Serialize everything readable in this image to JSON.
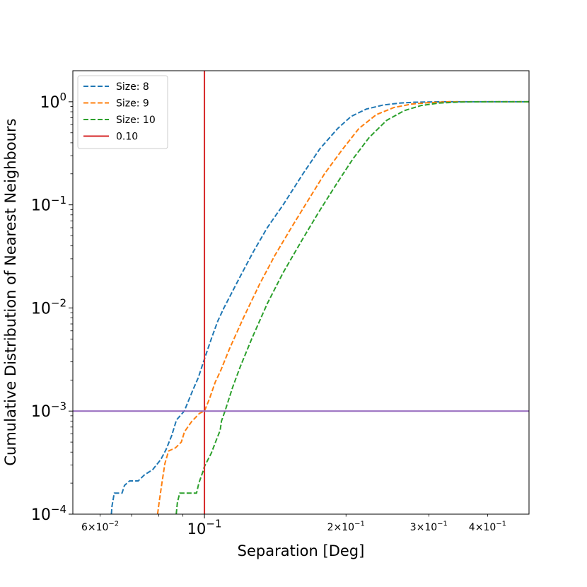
{
  "chart_data": {
    "type": "line",
    "xscale": "log",
    "yscale": "log",
    "xlabel": "Separation [Deg]",
    "ylabel": "Cumulative Distribution of Nearest Neighbours",
    "xlim": [
      0.0525,
      0.49
    ],
    "ylim": [
      0.0001,
      2.0
    ],
    "x_major_ticks": [
      {
        "value": 0.1,
        "mantissa": "",
        "base": "10",
        "exp": "−1"
      }
    ],
    "x_minor_ticks": [
      {
        "value": 0.06,
        "mantissa": "6×",
        "base": "10",
        "exp": "−2"
      },
      {
        "value": 0.2,
        "mantissa": "2×",
        "base": "10",
        "exp": "−1"
      },
      {
        "value": 0.3,
        "mantissa": "3×",
        "base": "10",
        "exp": "−1"
      },
      {
        "value": 0.4,
        "mantissa": "4×",
        "base": "10",
        "exp": "−1"
      }
    ],
    "y_major_ticks": [
      {
        "value": 0.0001,
        "base": "10",
        "exp": "−4"
      },
      {
        "value": 0.001,
        "base": "10",
        "exp": "−3"
      },
      {
        "value": 0.01,
        "base": "10",
        "exp": "−2"
      },
      {
        "value": 0.1,
        "base": "10",
        "exp": "−1"
      },
      {
        "value": 1.0,
        "base": "10",
        "exp": "0"
      }
    ],
    "series": [
      {
        "name": "Size: 8",
        "style": "dashed",
        "color": "#1f77b4",
        "points": [
          [
            0.0634,
            0.0001
          ],
          [
            0.0636,
            0.00012
          ],
          [
            0.0643,
            0.00016
          ],
          [
            0.0668,
            0.00016
          ],
          [
            0.0676,
            0.00019
          ],
          [
            0.0693,
            0.00021
          ],
          [
            0.0723,
            0.00021
          ],
          [
            0.0745,
            0.00024
          ],
          [
            0.0776,
            0.00027
          ],
          [
            0.0808,
            0.00034
          ],
          [
            0.0828,
            0.00042
          ],
          [
            0.0852,
            0.00058
          ],
          [
            0.0872,
            0.00082
          ],
          [
            0.0906,
            0.001
          ],
          [
            0.0945,
            0.0016
          ],
          [
            0.097,
            0.0021
          ],
          [
            0.1,
            0.0032
          ],
          [
            0.1037,
            0.0052
          ],
          [
            0.1068,
            0.0075
          ],
          [
            0.11,
            0.01
          ],
          [
            0.119,
            0.02
          ],
          [
            0.127,
            0.035
          ],
          [
            0.136,
            0.06
          ],
          [
            0.147,
            0.1
          ],
          [
            0.162,
            0.2
          ],
          [
            0.176,
            0.35
          ],
          [
            0.192,
            0.55
          ],
          [
            0.205,
            0.72
          ],
          [
            0.221,
            0.85
          ],
          [
            0.24,
            0.93
          ],
          [
            0.26,
            0.97
          ],
          [
            0.28,
            0.99
          ],
          [
            0.32,
            1.0
          ],
          [
            0.49,
            1.0
          ]
        ]
      },
      {
        "name": "Size: 9",
        "style": "dashed",
        "color": "#ff7f0e",
        "points": [
          [
            0.0795,
            0.0001
          ],
          [
            0.0801,
            0.00013
          ],
          [
            0.0812,
            0.0002
          ],
          [
            0.0824,
            0.00031
          ],
          [
            0.0839,
            0.00041
          ],
          [
            0.0868,
            0.00044
          ],
          [
            0.0893,
            0.0005
          ],
          [
            0.0907,
            0.00063
          ],
          [
            0.0939,
            0.00079
          ],
          [
            0.0976,
            0.00095
          ],
          [
            0.1,
            0.001
          ],
          [
            0.1024,
            0.0013
          ],
          [
            0.1054,
            0.0019
          ],
          [
            0.1084,
            0.0025
          ],
          [
            0.113,
            0.004
          ],
          [
            0.121,
            0.008
          ],
          [
            0.131,
            0.017
          ],
          [
            0.141,
            0.032
          ],
          [
            0.153,
            0.06
          ],
          [
            0.166,
            0.11
          ],
          [
            0.18,
            0.2
          ],
          [
            0.197,
            0.35
          ],
          [
            0.213,
            0.55
          ],
          [
            0.232,
            0.75
          ],
          [
            0.253,
            0.88
          ],
          [
            0.276,
            0.95
          ],
          [
            0.3,
            0.98
          ],
          [
            0.33,
            1.0
          ],
          [
            0.49,
            1.0
          ]
        ]
      },
      {
        "name": "Size: 10",
        "style": "dashed",
        "color": "#2ca02c",
        "points": [
          [
            0.0871,
            0.0001
          ],
          [
            0.0876,
            0.00013
          ],
          [
            0.0886,
            0.00016
          ],
          [
            0.0962,
            0.00016
          ],
          [
            0.0973,
            0.0002
          ],
          [
            0.0993,
            0.00026
          ],
          [
            0.1,
            0.00029
          ],
          [
            0.1034,
            0.00039
          ],
          [
            0.1061,
            0.00053
          ],
          [
            0.108,
            0.00065
          ],
          [
            0.1087,
            0.0008
          ],
          [
            0.1106,
            0.001
          ],
          [
            0.1148,
            0.0017
          ],
          [
            0.1192,
            0.0027
          ],
          [
            0.126,
            0.005
          ],
          [
            0.136,
            0.011
          ],
          [
            0.147,
            0.022
          ],
          [
            0.161,
            0.045
          ],
          [
            0.175,
            0.085
          ],
          [
            0.191,
            0.16
          ],
          [
            0.207,
            0.28
          ],
          [
            0.224,
            0.45
          ],
          [
            0.244,
            0.66
          ],
          [
            0.266,
            0.82
          ],
          [
            0.289,
            0.92
          ],
          [
            0.315,
            0.97
          ],
          [
            0.35,
            0.995
          ],
          [
            0.4,
            1.0
          ],
          [
            0.49,
            1.0
          ]
        ]
      }
    ],
    "vline": {
      "name": "0.10",
      "x": 0.1,
      "color": "#d62728"
    },
    "hline": {
      "y": 0.001,
      "color": "#9467bd"
    },
    "legend": {
      "location": "upper-left",
      "entries": [
        "Size: 8",
        "Size: 9",
        "Size: 10",
        "0.10"
      ]
    }
  }
}
